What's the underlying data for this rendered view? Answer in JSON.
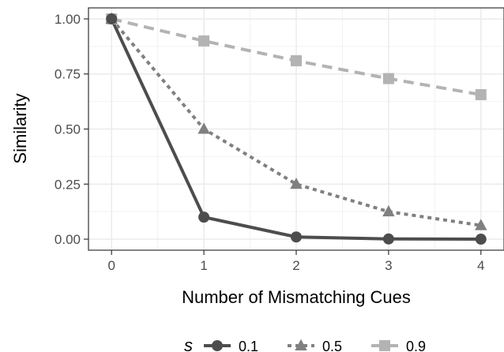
{
  "chart_data": {
    "type": "line",
    "xlabel": "Number of Mismatching Cues",
    "ylabel": "Similarity",
    "x": [
      0,
      1,
      2,
      3,
      4
    ],
    "xlim": [
      -0.25,
      4.25
    ],
    "ylim": [
      -0.05,
      1.05
    ],
    "xticks": [
      "0",
      "1",
      "2",
      "3",
      "4"
    ],
    "yticks": [
      "0.00",
      "0.25",
      "0.50",
      "0.75",
      "1.00"
    ],
    "grid": true,
    "legend": {
      "title": "s",
      "position": "bottom"
    },
    "series": [
      {
        "name": "0.1",
        "values": [
          1.0,
          0.1,
          0.01,
          0.001,
          0.0001
        ],
        "color": "#4d4d4d",
        "marker": "circle",
        "dash": "solid"
      },
      {
        "name": "0.5",
        "values": [
          1.0,
          0.5,
          0.25,
          0.125,
          0.0625
        ],
        "color": "#808080",
        "marker": "triangle",
        "dash": "dotted"
      },
      {
        "name": "0.9",
        "values": [
          1.0,
          0.9,
          0.81,
          0.729,
          0.6561
        ],
        "color": "#b3b3b3",
        "marker": "square",
        "dash": "dashed"
      }
    ]
  }
}
